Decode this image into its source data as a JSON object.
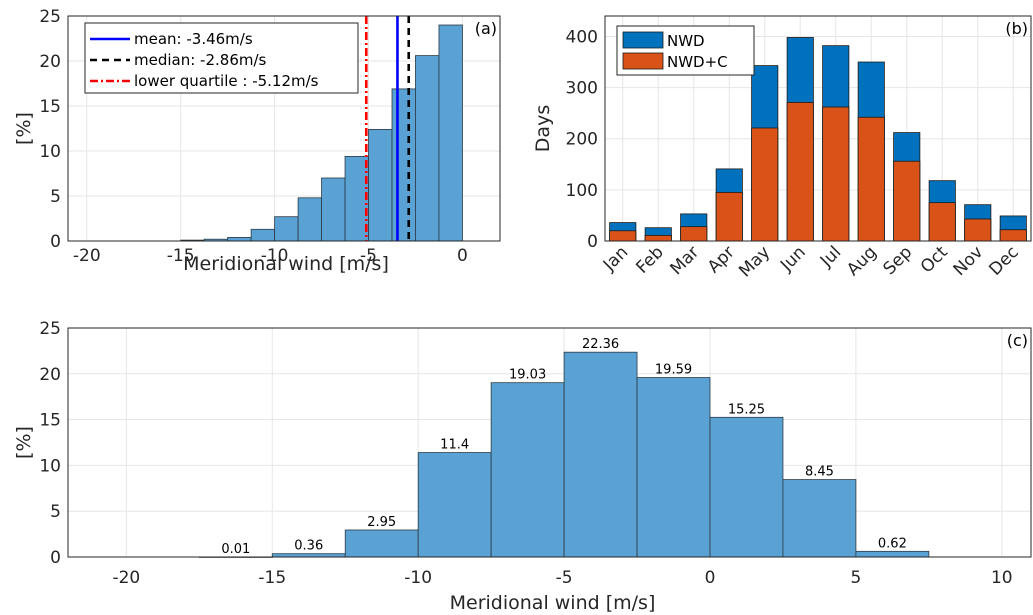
{
  "chart_data": [
    {
      "panel_label": "(a)",
      "type": "bar",
      "xlabel": "Meridional wind [m/s]",
      "ylabel": "[%]",
      "xlim": [
        -21,
        2
      ],
      "ylim": [
        0,
        25
      ],
      "xticks": [
        -20,
        -15,
        -10,
        -5,
        0
      ],
      "yticks": [
        0,
        5,
        10,
        15,
        20,
        25
      ],
      "bin_width": 1.25,
      "bins": [
        {
          "x0": -15.0,
          "value": 0.1
        },
        {
          "x0": -13.75,
          "value": 0.2
        },
        {
          "x0": -12.5,
          "value": 0.4
        },
        {
          "x0": -11.25,
          "value": 1.3
        },
        {
          "x0": -10.0,
          "value": 2.7
        },
        {
          "x0": -8.75,
          "value": 4.8
        },
        {
          "x0": -7.5,
          "value": 7.0
        },
        {
          "x0": -6.25,
          "value": 9.4
        },
        {
          "x0": -5.0,
          "value": 12.4
        },
        {
          "x0": -3.75,
          "value": 16.9
        },
        {
          "x0": -2.5,
          "value": 20.6
        },
        {
          "x0": -1.25,
          "value": 24.0
        }
      ],
      "bar_color": "#5aa2d4",
      "reference_lines": [
        {
          "name": "mean",
          "label": "mean: -3.46m/s",
          "x": -3.46,
          "color": "#0000ff",
          "style": "solid"
        },
        {
          "name": "median",
          "label": "median: -2.86m/s",
          "x": -2.86,
          "color": "#000000",
          "style": "dashed"
        },
        {
          "name": "lower-quartile",
          "label": "lower quartile : -5.12m/s",
          "x": -5.12,
          "color": "#ff0000",
          "style": "dashdot"
        }
      ],
      "legend_position": "top-left",
      "grid": true
    },
    {
      "panel_label": "(b)",
      "type": "bar",
      "stacked": false,
      "overlaid": true,
      "ylabel": "Days",
      "ylim": [
        0,
        440
      ],
      "yticks": [
        0,
        100,
        200,
        300,
        400
      ],
      "categories": [
        "Jan",
        "Feb",
        "Mar",
        "Apr",
        "May",
        "Jun",
        "Jul",
        "Aug",
        "Sep",
        "Oct",
        "Nov",
        "Dec"
      ],
      "series": [
        {
          "name": "NWD",
          "color": "#0072bd",
          "values": [
            36,
            26,
            53,
            141,
            343,
            398,
            382,
            350,
            212,
            118,
            71,
            49
          ]
        },
        {
          "name": "NWD+C",
          "color": "#d95319",
          "values": [
            20,
            11,
            28,
            95,
            221,
            271,
            262,
            242,
            156,
            75,
            43,
            22
          ]
        }
      ],
      "legend_position": "top-left",
      "grid": true
    },
    {
      "panel_label": "(c)",
      "type": "bar",
      "xlabel": "Meridional wind [m/s]",
      "ylabel": "[%]",
      "xlim": [
        -22,
        11
      ],
      "ylim": [
        0,
        25
      ],
      "xticks": [
        -20,
        -15,
        -10,
        -5,
        0,
        5,
        10
      ],
      "yticks": [
        0,
        5,
        10,
        15,
        20,
        25
      ],
      "bin_width": 2.5,
      "bins": [
        {
          "x0": -17.5,
          "value": 0.01,
          "label": "0.01"
        },
        {
          "x0": -15.0,
          "value": 0.36,
          "label": "0.36"
        },
        {
          "x0": -12.5,
          "value": 2.95,
          "label": "2.95"
        },
        {
          "x0": -10.0,
          "value": 11.4,
          "label": "11.4"
        },
        {
          "x0": -7.5,
          "value": 19.03,
          "label": "19.03"
        },
        {
          "x0": -5.0,
          "value": 22.36,
          "label": "22.36"
        },
        {
          "x0": -2.5,
          "value": 19.59,
          "label": "19.59"
        },
        {
          "x0": 0.0,
          "value": 15.25,
          "label": "15.25"
        },
        {
          "x0": 2.5,
          "value": 8.45,
          "label": "8.45"
        },
        {
          "x0": 5.0,
          "value": 0.62,
          "label": "0.62"
        }
      ],
      "bar_color": "#5aa2d4",
      "grid": true
    }
  ]
}
